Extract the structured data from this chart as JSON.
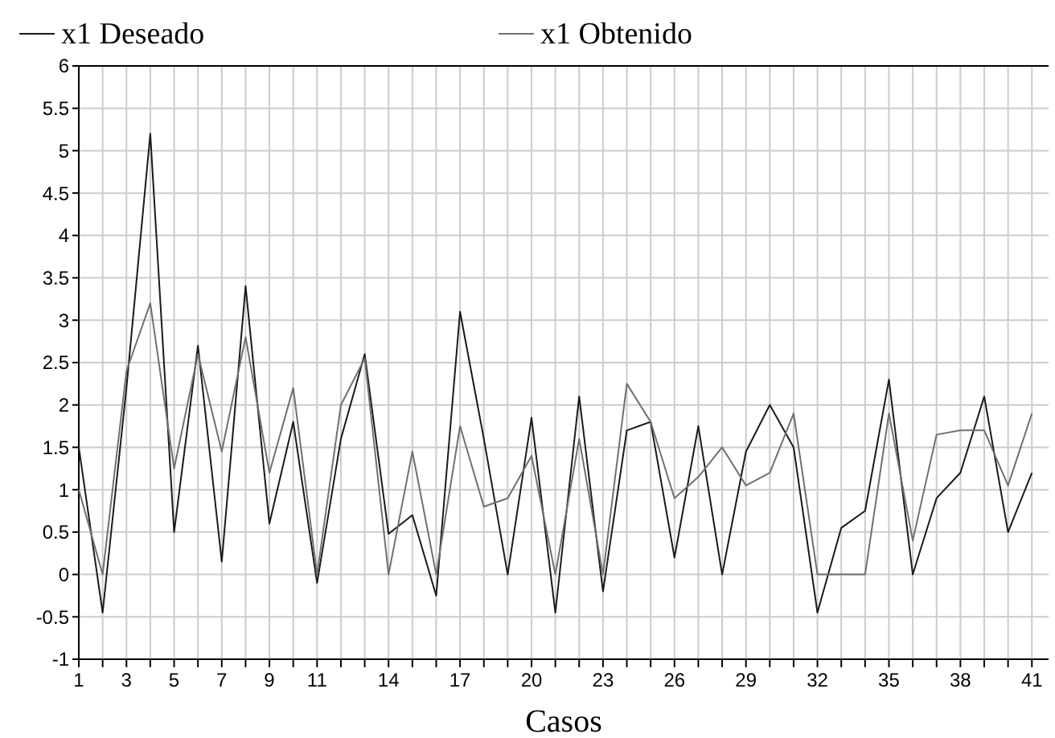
{
  "chart_data": {
    "type": "line",
    "xlabel": "Casos",
    "x": [
      1,
      2,
      3,
      4,
      5,
      6,
      7,
      8,
      9,
      10,
      11,
      12,
      13,
      14,
      15,
      16,
      17,
      18,
      19,
      20,
      21,
      22,
      23,
      24,
      25,
      26,
      27,
      28,
      29,
      30,
      31,
      32,
      33,
      34,
      35,
      36,
      37,
      38,
      39,
      40,
      41
    ],
    "series": [
      {
        "name": "x1 Deseado",
        "color": "#1a1a1a",
        "values": [
          1.5,
          -0.45,
          2.2,
          5.2,
          0.5,
          2.7,
          0.15,
          3.4,
          0.6,
          1.8,
          -0.1,
          1.6,
          2.6,
          0.48,
          0.7,
          -0.25,
          3.1,
          1.6,
          0.0,
          1.85,
          -0.45,
          2.1,
          -0.2,
          1.7,
          1.8,
          0.2,
          1.75,
          0.0,
          1.45,
          2.0,
          1.5,
          -0.45,
          0.55,
          0.75,
          2.3,
          0.0,
          0.9,
          1.2,
          2.1,
          0.5,
          1.2
        ]
      },
      {
        "name": "x1 Obtenido",
        "color": "#707070",
        "values": [
          1.0,
          0.0,
          2.4,
          3.2,
          1.25,
          2.6,
          1.45,
          2.8,
          1.2,
          2.2,
          0.0,
          2.0,
          2.55,
          0.0,
          1.45,
          0.0,
          1.75,
          0.8,
          0.9,
          1.4,
          0.0,
          1.6,
          0.0,
          2.25,
          1.8,
          0.9,
          1.15,
          1.5,
          1.05,
          1.2,
          1.9,
          0.0,
          0.0,
          0.0,
          1.9,
          0.4,
          1.65,
          1.7,
          1.7,
          1.05,
          1.9
        ]
      }
    ],
    "xlim": [
      1,
      41.7
    ],
    "xticks": [
      1,
      {
        "value": 2,
        "label": null
      },
      3,
      {
        "value": 4,
        "label": null
      },
      5,
      {
        "value": 6,
        "label": null
      },
      7,
      {
        "value": 8,
        "label": null
      },
      9,
      {
        "value": 10,
        "label": null
      },
      11,
      {
        "value": 12,
        "label": null
      },
      {
        "value": 13,
        "label": null
      },
      14,
      {
        "value": 15,
        "label": null
      },
      {
        "value": 16,
        "label": null
      },
      17,
      {
        "value": 18,
        "label": null
      },
      {
        "value": 19,
        "label": null
      },
      20,
      {
        "value": 21,
        "label": null
      },
      {
        "value": 22,
        "label": null
      },
      23,
      {
        "value": 24,
        "label": null
      },
      {
        "value": 25,
        "label": null
      },
      26,
      {
        "value": 27,
        "label": null
      },
      {
        "value": 28,
        "label": null
      },
      29,
      {
        "value": 30,
        "label": null
      },
      {
        "value": 31,
        "label": null
      },
      32,
      {
        "value": 33,
        "label": null
      },
      {
        "value": 34,
        "label": null
      },
      35,
      {
        "value": 36,
        "label": null
      },
      {
        "value": 37,
        "label": null
      },
      38,
      {
        "value": 39,
        "label": null
      },
      {
        "value": 40,
        "label": null
      },
      41
    ],
    "ylim": [
      -1,
      6
    ],
    "yticks": [
      -1,
      -0.5,
      0,
      0.5,
      1,
      1.5,
      2,
      2.5,
      3,
      3.5,
      4,
      4.5,
      5,
      5.5,
      6
    ],
    "grid": true,
    "legend": "top",
    "marker": "none",
    "line_style": "solid"
  }
}
